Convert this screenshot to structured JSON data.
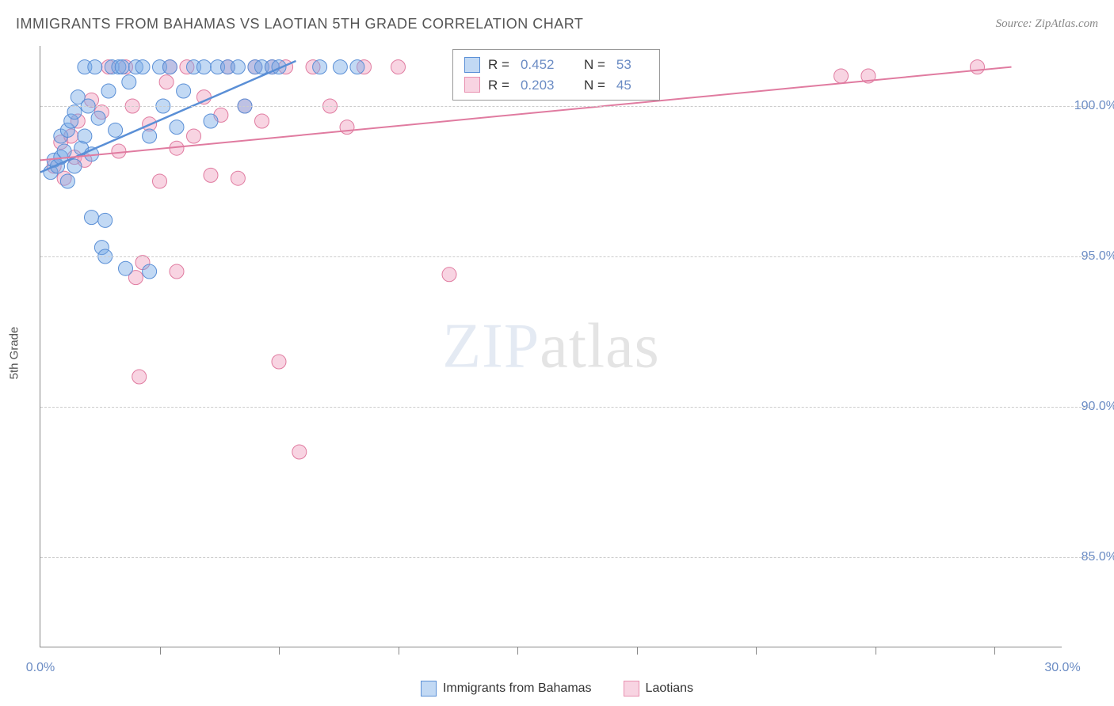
{
  "title": "IMMIGRANTS FROM BAHAMAS VS LAOTIAN 5TH GRADE CORRELATION CHART",
  "source": "Source: ZipAtlas.com",
  "ylabel": "5th Grade",
  "watermark": {
    "part1": "ZIP",
    "part2": "atlas"
  },
  "chart": {
    "type": "scatter",
    "xlim": [
      0,
      30
    ],
    "ylim": [
      82,
      102
    ],
    "xticks_labels": {
      "0": "0.0%",
      "30": "30.0%"
    },
    "xticks_minor": [
      3.5,
      7,
      10.5,
      14,
      17.5,
      21,
      24.5,
      28
    ],
    "yticks": [
      85,
      90,
      95,
      100
    ],
    "ytick_labels": [
      "85.0%",
      "90.0%",
      "95.0%",
      "100.0%"
    ],
    "grid_color": "#cccccc",
    "axis_color": "#888888",
    "background_color": "#ffffff",
    "marker_radius": 9,
    "marker_opacity": 0.45,
    "line_width_blue": 2.5,
    "line_width_pink": 2,
    "series": [
      {
        "name": "Immigrants from Bahamas",
        "color_fill": "#78aae6",
        "color_stroke": "#5a8fd6",
        "trend": {
          "x0": 0,
          "y0": 97.8,
          "x1": 7.5,
          "y1": 101.5
        },
        "stats": {
          "R": "0.452",
          "N": "53"
        },
        "points": [
          [
            0.3,
            97.8
          ],
          [
            0.4,
            98.2
          ],
          [
            0.5,
            98.0
          ],
          [
            0.6,
            99.0
          ],
          [
            0.6,
            98.3
          ],
          [
            0.7,
            98.5
          ],
          [
            0.8,
            99.2
          ],
          [
            0.8,
            97.5
          ],
          [
            0.9,
            99.5
          ],
          [
            1.0,
            98.0
          ],
          [
            1.0,
            99.8
          ],
          [
            1.1,
            100.3
          ],
          [
            1.2,
            98.6
          ],
          [
            1.3,
            99.0
          ],
          [
            1.3,
            101.3
          ],
          [
            1.4,
            100.0
          ],
          [
            1.5,
            98.4
          ],
          [
            1.5,
            96.3
          ],
          [
            1.6,
            101.3
          ],
          [
            1.7,
            99.6
          ],
          [
            1.8,
            95.3
          ],
          [
            1.9,
            95.0
          ],
          [
            1.9,
            96.2
          ],
          [
            2.0,
            100.5
          ],
          [
            2.1,
            101.3
          ],
          [
            2.2,
            99.2
          ],
          [
            2.3,
            101.3
          ],
          [
            2.4,
            101.3
          ],
          [
            2.5,
            94.6
          ],
          [
            2.6,
            100.8
          ],
          [
            2.8,
            101.3
          ],
          [
            3.0,
            101.3
          ],
          [
            3.2,
            99.0
          ],
          [
            3.2,
            94.5
          ],
          [
            3.5,
            101.3
          ],
          [
            3.6,
            100.0
          ],
          [
            3.8,
            101.3
          ],
          [
            4.0,
            99.3
          ],
          [
            4.2,
            100.5
          ],
          [
            4.5,
            101.3
          ],
          [
            4.8,
            101.3
          ],
          [
            5.0,
            99.5
          ],
          [
            5.2,
            101.3
          ],
          [
            5.5,
            101.3
          ],
          [
            5.8,
            101.3
          ],
          [
            6.0,
            100.0
          ],
          [
            6.3,
            101.3
          ],
          [
            6.5,
            101.3
          ],
          [
            6.8,
            101.3
          ],
          [
            7.0,
            101.3
          ],
          [
            8.2,
            101.3
          ],
          [
            8.8,
            101.3
          ],
          [
            9.3,
            101.3
          ]
        ]
      },
      {
        "name": "Laotians",
        "color_fill": "#f0a0be",
        "color_stroke": "#e07ba0",
        "trend": {
          "x0": 0,
          "y0": 98.2,
          "x1": 28.5,
          "y1": 101.3
        },
        "stats": {
          "R": "0.203",
          "N": "45"
        },
        "points": [
          [
            0.4,
            98.0
          ],
          [
            0.6,
            98.8
          ],
          [
            0.7,
            97.6
          ],
          [
            0.9,
            99.0
          ],
          [
            1.0,
            98.3
          ],
          [
            1.1,
            99.5
          ],
          [
            1.3,
            98.2
          ],
          [
            1.5,
            100.2
          ],
          [
            1.8,
            99.8
          ],
          [
            2.0,
            101.3
          ],
          [
            2.3,
            98.5
          ],
          [
            2.5,
            101.3
          ],
          [
            2.7,
            100.0
          ],
          [
            2.8,
            94.3
          ],
          [
            2.9,
            91.0
          ],
          [
            3.0,
            94.8
          ],
          [
            3.2,
            99.4
          ],
          [
            3.5,
            97.5
          ],
          [
            3.7,
            100.8
          ],
          [
            3.8,
            101.3
          ],
          [
            4.0,
            98.6
          ],
          [
            4.0,
            94.5
          ],
          [
            4.3,
            101.3
          ],
          [
            4.5,
            99.0
          ],
          [
            4.8,
            100.3
          ],
          [
            5.0,
            97.7
          ],
          [
            5.3,
            99.7
          ],
          [
            5.5,
            101.3
          ],
          [
            5.8,
            97.6
          ],
          [
            6.0,
            100.0
          ],
          [
            6.3,
            101.3
          ],
          [
            6.5,
            99.5
          ],
          [
            6.8,
            101.3
          ],
          [
            7.0,
            91.5
          ],
          [
            7.2,
            101.3
          ],
          [
            7.6,
            88.5
          ],
          [
            8.0,
            101.3
          ],
          [
            8.5,
            100.0
          ],
          [
            9.0,
            99.3
          ],
          [
            9.5,
            101.3
          ],
          [
            10.5,
            101.3
          ],
          [
            12.0,
            94.4
          ],
          [
            23.5,
            101.0
          ],
          [
            24.3,
            101.0
          ],
          [
            27.5,
            101.3
          ]
        ]
      }
    ]
  },
  "legend_in_plot": {
    "rows": [
      {
        "swatch": "blue",
        "R_label": "R =",
        "R": "0.452",
        "N_label": "N =",
        "N": "53"
      },
      {
        "swatch": "pink",
        "R_label": "R =",
        "R": "0.203",
        "N_label": "N =",
        "N": "45"
      }
    ]
  },
  "bottom_legend": [
    {
      "swatch": "blue",
      "label": "Immigrants from Bahamas"
    },
    {
      "swatch": "pink",
      "label": "Laotians"
    }
  ]
}
